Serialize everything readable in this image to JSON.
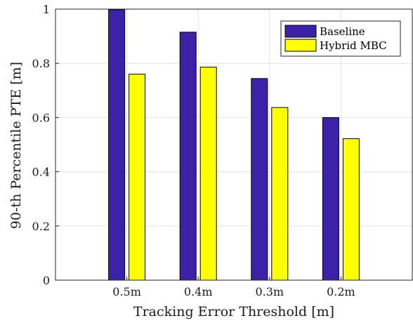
{
  "chart_data": {
    "type": "bar",
    "title": "",
    "xlabel": "Tracking Error Threshold [m]",
    "ylabel": "90-th Percentile PTE [m]",
    "categories": [
      "0.5m",
      "0.4m",
      "0.3m",
      "0.2m"
    ],
    "series": [
      {
        "name": "Baseline",
        "color": "#3b22a8",
        "values": [
          0.998,
          0.915,
          0.744,
          0.6
        ]
      },
      {
        "name": "Hybrid MBC",
        "color": "#ffff00",
        "values": [
          0.76,
          0.786,
          0.637,
          0.522
        ]
      }
    ],
    "ylim": [
      0,
      1
    ],
    "yticks": [
      "0",
      "0.2",
      "0.4",
      "0.6",
      "0.8",
      "1"
    ],
    "grid": true,
    "legend_position": "top-right"
  }
}
